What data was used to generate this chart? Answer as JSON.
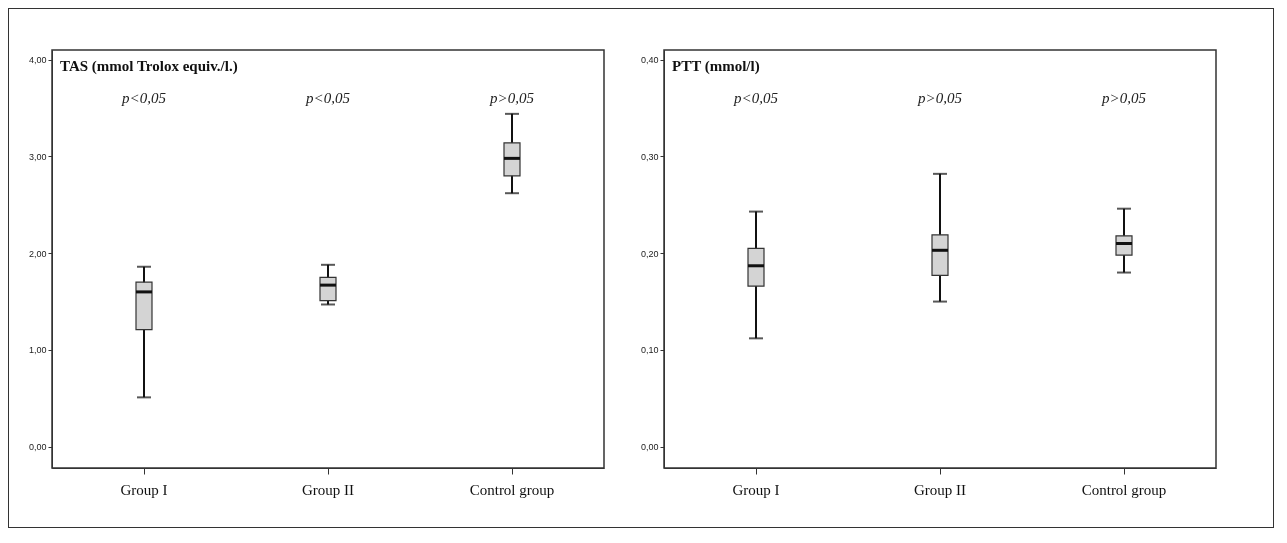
{
  "chart_data": [
    {
      "type": "box",
      "title": "TAS (mmol Trolox equiv./l.)",
      "categories": [
        "Group I",
        "Group II",
        "Control group"
      ],
      "ylim": [
        -0.22,
        4.1
      ],
      "yticks": [
        {
          "value": 0,
          "label": "0,00"
        },
        {
          "value": 1,
          "label": "1,00"
        },
        {
          "value": 2,
          "label": "2,00"
        },
        {
          "value": 3,
          "label": "3,00"
        },
        {
          "value": 4,
          "label": "4,00"
        }
      ],
      "grid": false,
      "series": [
        {
          "color": "#d4d4d4",
          "boxes": [
            {
              "low": 0.51,
              "q1": 1.21,
              "median": 1.6,
              "q3": 1.7,
              "high": 1.86
            },
            {
              "low": 1.47,
              "q1": 1.51,
              "median": 1.67,
              "q3": 1.75,
              "high": 1.88
            },
            {
              "low": 2.62,
              "q1": 2.8,
              "median": 2.98,
              "q3": 3.14,
              "high": 3.44
            }
          ]
        }
      ],
      "annotations": [
        "p<0,05",
        "p<0,05",
        "p>0,05"
      ]
    },
    {
      "type": "box",
      "title": "PTT (mmol/l)",
      "categories": [
        "Group I",
        "Group II",
        "Control group"
      ],
      "ylim": [
        -0.022,
        0.41
      ],
      "yticks": [
        {
          "value": 0,
          "label": "0,00"
        },
        {
          "value": 0.1,
          "label": "0,10"
        },
        {
          "value": 0.2,
          "label": "0,20"
        },
        {
          "value": 0.3,
          "label": "0,30"
        },
        {
          "value": 0.4,
          "label": "0,40"
        }
      ],
      "grid": false,
      "series": [
        {
          "color": "#d4d4d4",
          "boxes": [
            {
              "low": 0.112,
              "q1": 0.166,
              "median": 0.187,
              "q3": 0.205,
              "high": 0.243
            },
            {
              "low": 0.15,
              "q1": 0.177,
              "median": 0.203,
              "q3": 0.219,
              "high": 0.282
            },
            {
              "low": 0.18,
              "q1": 0.198,
              "median": 0.21,
              "q3": 0.218,
              "high": 0.246
            }
          ]
        }
      ],
      "annotations": [
        "p<0,05",
        "p>0,05",
        "p>0,05"
      ]
    }
  ]
}
